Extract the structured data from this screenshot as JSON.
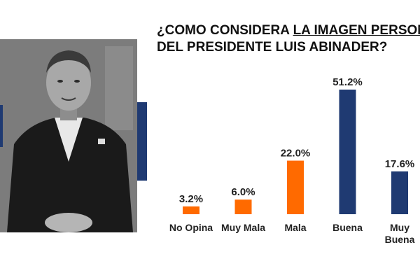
{
  "title": {
    "prefix": "¿COMO CONSIDERA ",
    "underlined": "LA IMAGEN PERSON",
    "line2": "DEL PRESIDENTE LUIS ABINADER?"
  },
  "colors": {
    "orange": "#ff6a00",
    "navy": "#1f3a72",
    "accent": "#1f3a72"
  },
  "chart_data": {
    "type": "bar",
    "title": "¿COMO CONSIDERA LA IMAGEN PERSON DEL PRESIDENTE LUIS ABINADER?",
    "categories": [
      "No Opina",
      "Muy Mala",
      "Mala",
      "Buena",
      "Muy Buena"
    ],
    "category_lines": [
      [
        "No Opina"
      ],
      [
        "Muy Mala"
      ],
      [
        "Mala"
      ],
      [
        "Buena"
      ],
      [
        "Muy",
        "Buena"
      ]
    ],
    "values": [
      3.2,
      6.0,
      22.0,
      51.2,
      17.6
    ],
    "value_labels": [
      "3.2%",
      "6.0%",
      "22.0%",
      "51.2%",
      "17.6%"
    ],
    "bar_colors": [
      "#ff6a00",
      "#ff6a00",
      "#ff6a00",
      "#1f3a72",
      "#1f3a72"
    ],
    "ylim": [
      0,
      51.2
    ],
    "grid": false,
    "legend": "none",
    "xlabel": "",
    "ylabel": ""
  }
}
